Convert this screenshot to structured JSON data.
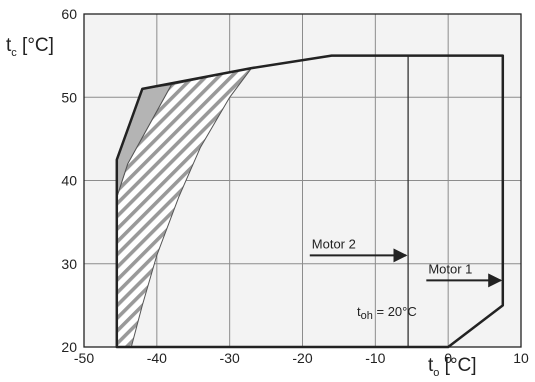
{
  "chart_data": {
    "type": "area",
    "xlim": [
      -50,
      10
    ],
    "ylim": [
      20,
      60
    ],
    "x_ticks": [
      "-50",
      "-40",
      "-30",
      "-20",
      "-10",
      "0",
      "10"
    ],
    "y_ticks": [
      "20",
      "30",
      "40",
      "50",
      "60"
    ],
    "grid": true,
    "axis_labels": {
      "y": {
        "main": "t",
        "sub": "c",
        "unit": " [°C]"
      },
      "x": {
        "main": "t",
        "sub": "o",
        "unit": " [°C]"
      }
    },
    "envelope": [
      {
        "x": -45.5,
        "y": 20
      },
      {
        "x": -45.5,
        "y": 42.5
      },
      {
        "x": -42,
        "y": 51
      },
      {
        "x": -27,
        "y": 53.5
      },
      {
        "x": -16,
        "y": 55
      },
      {
        "x": 7.5,
        "y": 55
      },
      {
        "x": 7.5,
        "y": 25
      },
      {
        "x": 0,
        "y": 20
      }
    ],
    "gray_region": [
      {
        "x": -45.5,
        "y": 38
      },
      {
        "x": -45.5,
        "y": 42.5
      },
      {
        "x": -42,
        "y": 51
      },
      {
        "x": -38,
        "y": 51.5
      },
      {
        "x": -44,
        "y": 42
      }
    ],
    "hatched_region": [
      {
        "x": -45.5,
        "y": 38
      },
      {
        "x": -44,
        "y": 42
      },
      {
        "x": -38,
        "y": 51.5
      },
      {
        "x": -27,
        "y": 53.5
      },
      {
        "x": -30,
        "y": 50
      },
      {
        "x": -34,
        "y": 44
      },
      {
        "x": -37,
        "y": 38
      },
      {
        "x": -40,
        "y": 31
      },
      {
        "x": -42,
        "y": 25
      },
      {
        "x": -43.5,
        "y": 20
      },
      {
        "x": -45.5,
        "y": 20
      }
    ],
    "reference_line": {
      "x": -5.5,
      "y_from": 20,
      "y_to": 55
    },
    "annotations": {
      "motor2": {
        "text": "Motor 2",
        "arrow_from": {
          "x": -19,
          "y": 31
        },
        "arrow_to": {
          "x": -5.5,
          "y": 31
        }
      },
      "motor1": {
        "text": "Motor 1",
        "arrow_from": {
          "x": -3,
          "y": 28
        },
        "arrow_to": {
          "x": 7.5,
          "y": 28
        }
      },
      "toh": {
        "main": "t",
        "sub": "oh",
        "rest": " = 20°C"
      }
    }
  }
}
